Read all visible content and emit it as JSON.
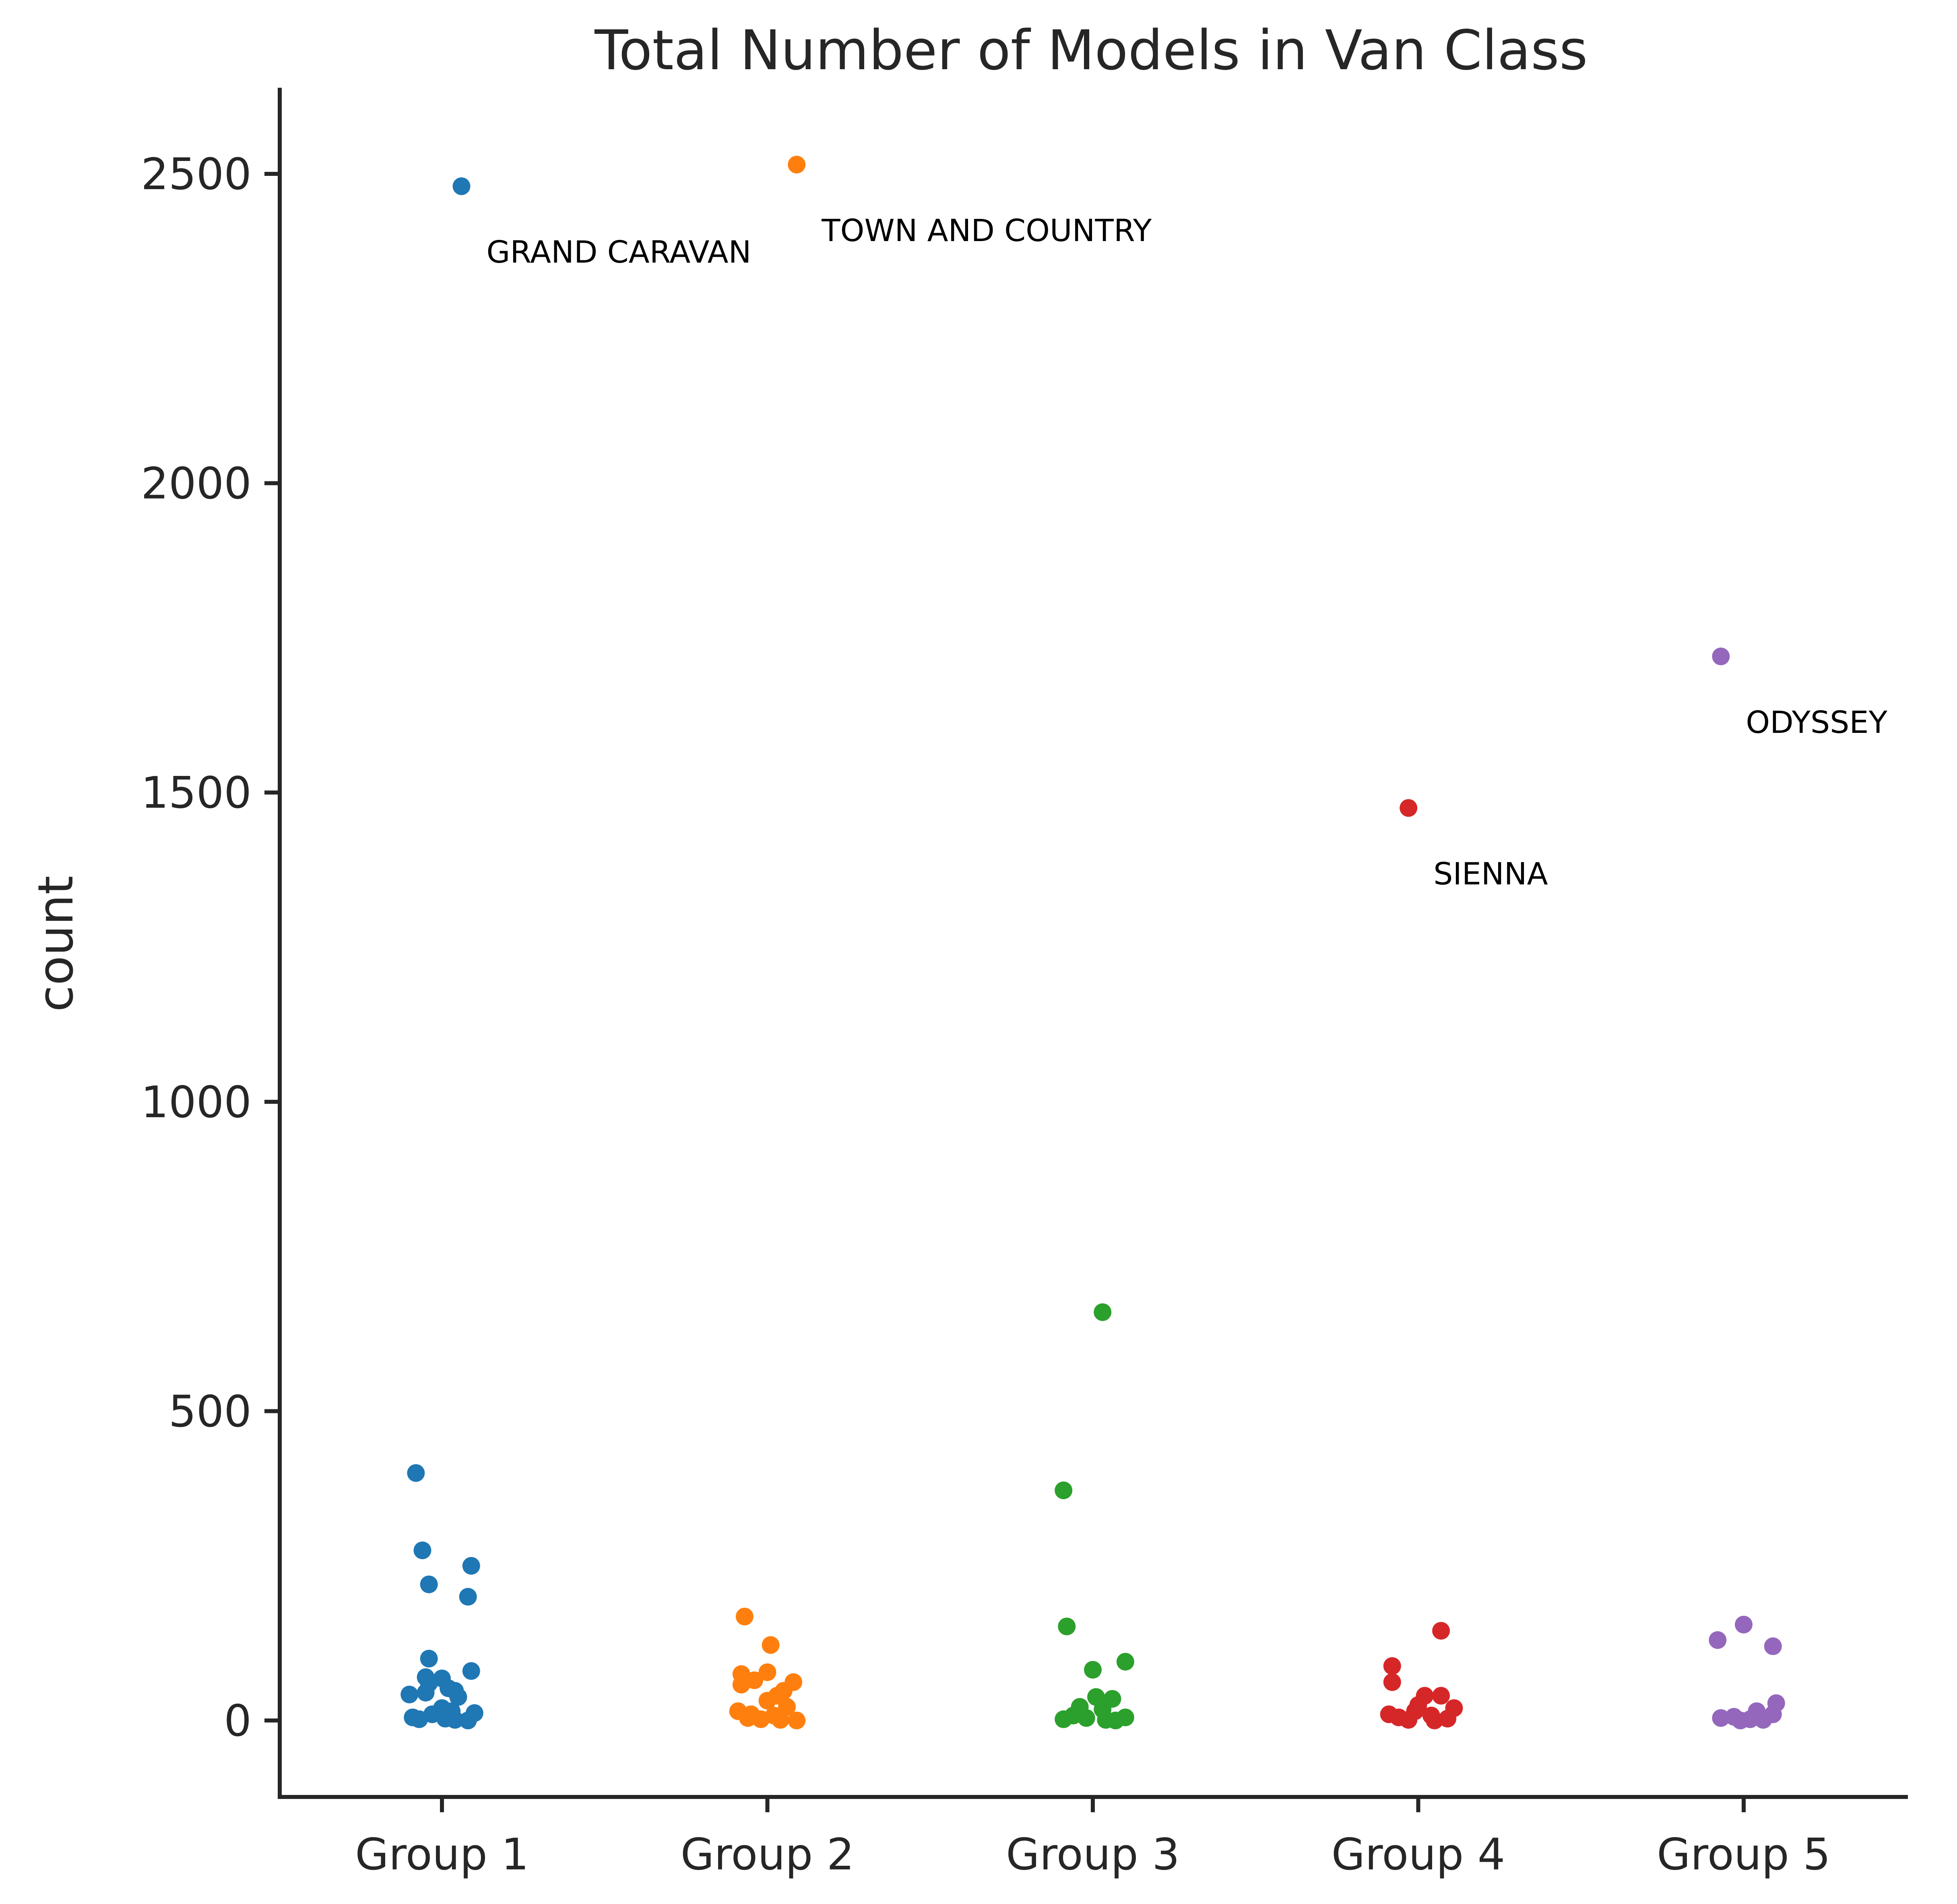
{
  "chart_data": {
    "type": "scatter",
    "title": "Total Number of Models in Van Class",
    "xlabel": "",
    "ylabel": "count",
    "categories": [
      "Group 1",
      "Group 2",
      "Group 3",
      "Group 4",
      "Group 5"
    ],
    "yticks": [
      0,
      500,
      1000,
      1500,
      2000,
      2500
    ],
    "ylim": [
      -125,
      2640
    ],
    "grid": false,
    "colors": [
      "#1f77b4",
      "#ff7f0e",
      "#2ca02c",
      "#d62728",
      "#9467bd"
    ],
    "series": [
      {
        "name": "Group 1",
        "points": [
          {
            "jitter": 0.06,
            "value": 2480
          },
          {
            "jitter": -0.08,
            "value": 400
          },
          {
            "jitter": -0.06,
            "value": 275
          },
          {
            "jitter": 0.09,
            "value": 250
          },
          {
            "jitter": -0.04,
            "value": 220
          },
          {
            "jitter": 0.08,
            "value": 200
          },
          {
            "jitter": -0.04,
            "value": 100
          },
          {
            "jitter": 0.09,
            "value": 80
          },
          {
            "jitter": -0.05,
            "value": 70
          },
          {
            "jitter": 0.0,
            "value": 68
          },
          {
            "jitter": -0.04,
            "value": 60
          },
          {
            "jitter": 0.02,
            "value": 52
          },
          {
            "jitter": 0.04,
            "value": 48
          },
          {
            "jitter": -0.05,
            "value": 45
          },
          {
            "jitter": -0.1,
            "value": 42
          },
          {
            "jitter": 0.05,
            "value": 38
          },
          {
            "jitter": 0.0,
            "value": 20
          },
          {
            "jitter": 0.03,
            "value": 15
          },
          {
            "jitter": 0.1,
            "value": 12
          },
          {
            "jitter": -0.03,
            "value": 10
          },
          {
            "jitter": -0.09,
            "value": 5
          },
          {
            "jitter": -0.07,
            "value": 2
          },
          {
            "jitter": 0.01,
            "value": 3
          },
          {
            "jitter": 0.04,
            "value": 1
          },
          {
            "jitter": 0.08,
            "value": 0
          }
        ]
      },
      {
        "name": "Group 2",
        "points": [
          {
            "jitter": 0.09,
            "value": 2515
          },
          {
            "jitter": -0.07,
            "value": 168
          },
          {
            "jitter": 0.01,
            "value": 122
          },
          {
            "jitter": -0.08,
            "value": 75
          },
          {
            "jitter": 0.0,
            "value": 78
          },
          {
            "jitter": -0.04,
            "value": 65
          },
          {
            "jitter": 0.08,
            "value": 62
          },
          {
            "jitter": -0.08,
            "value": 58
          },
          {
            "jitter": 0.05,
            "value": 48
          },
          {
            "jitter": 0.03,
            "value": 40
          },
          {
            "jitter": 0.0,
            "value": 32
          },
          {
            "jitter": 0.06,
            "value": 22
          },
          {
            "jitter": -0.09,
            "value": 15
          },
          {
            "jitter": -0.05,
            "value": 10
          },
          {
            "jitter": 0.02,
            "value": 8
          },
          {
            "jitter": -0.06,
            "value": 4
          },
          {
            "jitter": -0.02,
            "value": 2
          },
          {
            "jitter": 0.04,
            "value": 1
          },
          {
            "jitter": 0.09,
            "value": 0
          }
        ]
      },
      {
        "name": "Group 3",
        "points": [
          {
            "jitter": 0.03,
            "value": 660
          },
          {
            "jitter": -0.09,
            "value": 372
          },
          {
            "jitter": -0.08,
            "value": 152
          },
          {
            "jitter": 0.1,
            "value": 95
          },
          {
            "jitter": 0.0,
            "value": 82
          },
          {
            "jitter": 0.06,
            "value": 35
          },
          {
            "jitter": 0.01,
            "value": 38
          },
          {
            "jitter": -0.04,
            "value": 22
          },
          {
            "jitter": 0.03,
            "value": 18
          },
          {
            "jitter": -0.06,
            "value": 8
          },
          {
            "jitter": 0.1,
            "value": 5
          },
          {
            "jitter": -0.02,
            "value": 4
          },
          {
            "jitter": -0.09,
            "value": 2
          },
          {
            "jitter": 0.04,
            "value": 1
          },
          {
            "jitter": 0.07,
            "value": 0
          }
        ]
      },
      {
        "name": "Group 4",
        "points": [
          {
            "jitter": -0.03,
            "value": 1475
          },
          {
            "jitter": 0.07,
            "value": 145
          },
          {
            "jitter": -0.08,
            "value": 88
          },
          {
            "jitter": -0.08,
            "value": 62
          },
          {
            "jitter": 0.02,
            "value": 40
          },
          {
            "jitter": 0.07,
            "value": 40
          },
          {
            "jitter": 0.0,
            "value": 25
          },
          {
            "jitter": 0.11,
            "value": 20
          },
          {
            "jitter": -0.01,
            "value": 15
          },
          {
            "jitter": -0.09,
            "value": 10
          },
          {
            "jitter": 0.04,
            "value": 8
          },
          {
            "jitter": -0.06,
            "value": 5
          },
          {
            "jitter": 0.09,
            "value": 3
          },
          {
            "jitter": -0.03,
            "value": 1
          },
          {
            "jitter": 0.05,
            "value": 0
          }
        ]
      },
      {
        "name": "Group 5",
        "points": [
          {
            "jitter": -0.07,
            "value": 1720
          },
          {
            "jitter": 0.0,
            "value": 155
          },
          {
            "jitter": -0.08,
            "value": 130
          },
          {
            "jitter": 0.09,
            "value": 120
          },
          {
            "jitter": 0.1,
            "value": 28
          },
          {
            "jitter": 0.04,
            "value": 15
          },
          {
            "jitter": 0.09,
            "value": 10
          },
          {
            "jitter": -0.03,
            "value": 6
          },
          {
            "jitter": -0.07,
            "value": 4
          },
          {
            "jitter": 0.02,
            "value": 2
          },
          {
            "jitter": 0.06,
            "value": 1
          },
          {
            "jitter": -0.01,
            "value": 0
          }
        ]
      }
    ],
    "annotations": [
      {
        "text": "GRAND CARAVAN",
        "group": "Group 1"
      },
      {
        "text": "TOWN AND COUNTRY",
        "group": "Group 2"
      },
      {
        "text": "ODYSSEY",
        "group": "Group 5"
      },
      {
        "text": "SIENNA",
        "group": "Group 4"
      }
    ]
  }
}
